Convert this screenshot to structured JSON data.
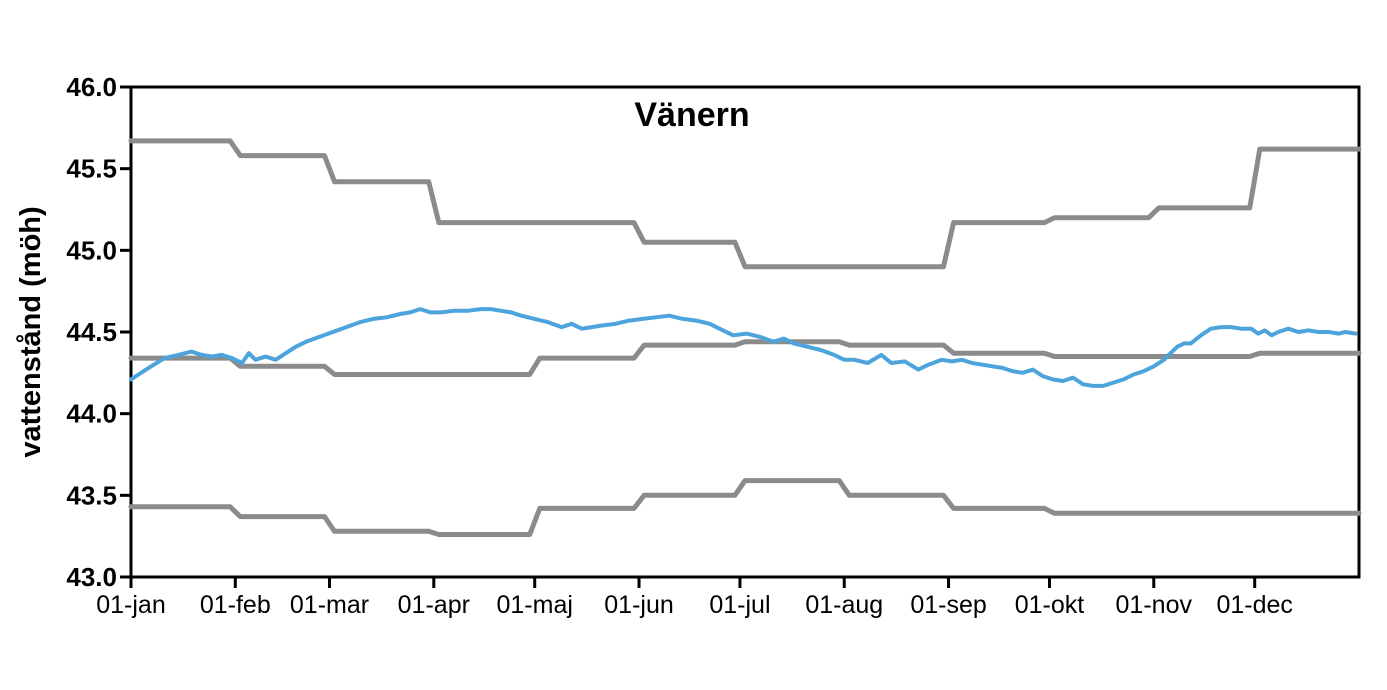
{
  "page": {
    "background": "#FFFFFF"
  },
  "chart_data": {
    "type": "line",
    "title": "Vänern",
    "ylabel": "vattenstånd (möh)",
    "xlabel": "",
    "ylim": [
      43.0,
      46.0
    ],
    "ytick_step": 0.5,
    "ytick_labels": [
      "46.0",
      "45.5",
      "45.0",
      "44.5",
      "44.0",
      "43.5",
      "43.0"
    ],
    "x_categories": [
      "01-jan",
      "01-feb",
      "01-mar",
      "01-apr",
      "01-maj",
      "01-jun",
      "01-jul",
      "01-aug",
      "01-sep",
      "01-okt",
      "01-nov",
      "01-dec"
    ],
    "month_start_days": [
      0,
      31,
      59,
      90,
      120,
      151,
      181,
      212,
      243,
      273,
      304,
      334
    ],
    "days_in_year": 365,
    "grid": false,
    "legend_position": "none",
    "axis_color": "#000000",
    "step_line_color": "#8B8B8B",
    "observed_line_color": "#4DA3DC",
    "series": [
      {
        "name": "upper-limit",
        "style": "step",
        "color": "#8B8B8B",
        "stroke_width": 5,
        "monthly_values": [
          45.67,
          45.58,
          45.42,
          45.17,
          45.17,
          45.05,
          44.9,
          44.9,
          45.17,
          45.2,
          45.26,
          45.62
        ]
      },
      {
        "name": "middle-reference",
        "style": "step",
        "color": "#8B8B8B",
        "stroke_width": 5,
        "monthly_values": [
          44.34,
          44.29,
          44.24,
          44.24,
          44.34,
          44.42,
          44.44,
          44.42,
          44.37,
          44.35,
          44.35,
          44.37
        ]
      },
      {
        "name": "lower-limit",
        "style": "step",
        "color": "#8B8B8B",
        "stroke_width": 5,
        "monthly_values": [
          43.43,
          43.37,
          43.28,
          43.26,
          43.42,
          43.5,
          43.59,
          43.5,
          43.42,
          43.39,
          43.39,
          43.39
        ]
      },
      {
        "name": "vattenstand-observed",
        "style": "line",
        "color": "#4DA3DC",
        "stroke_width": 4,
        "points": [
          [
            0,
            44.21
          ],
          [
            3,
            44.25
          ],
          [
            6,
            44.29
          ],
          [
            10,
            44.34
          ],
          [
            14,
            44.36
          ],
          [
            18,
            44.38
          ],
          [
            21,
            44.36
          ],
          [
            24,
            44.35
          ],
          [
            27,
            44.36
          ],
          [
            30,
            44.34
          ],
          [
            33,
            44.31
          ],
          [
            35,
            44.37
          ],
          [
            37,
            44.33
          ],
          [
            40,
            44.35
          ],
          [
            43,
            44.33
          ],
          [
            46,
            44.37
          ],
          [
            49,
            44.41
          ],
          [
            52,
            44.44
          ],
          [
            56,
            44.47
          ],
          [
            60,
            44.5
          ],
          [
            64,
            44.53
          ],
          [
            68,
            44.56
          ],
          [
            72,
            44.58
          ],
          [
            76,
            44.59
          ],
          [
            80,
            44.61
          ],
          [
            83,
            44.62
          ],
          [
            86,
            44.64
          ],
          [
            89,
            44.62
          ],
          [
            92,
            44.62
          ],
          [
            96,
            44.63
          ],
          [
            100,
            44.63
          ],
          [
            104,
            44.64
          ],
          [
            107,
            44.64
          ],
          [
            110,
            44.63
          ],
          [
            113,
            44.62
          ],
          [
            116,
            44.6
          ],
          [
            120,
            44.58
          ],
          [
            124,
            44.56
          ],
          [
            128,
            44.53
          ],
          [
            131,
            44.55
          ],
          [
            134,
            44.52
          ],
          [
            137,
            44.53
          ],
          [
            140,
            44.54
          ],
          [
            144,
            44.55
          ],
          [
            148,
            44.57
          ],
          [
            152,
            44.58
          ],
          [
            156,
            44.59
          ],
          [
            160,
            44.6
          ],
          [
            164,
            44.58
          ],
          [
            168,
            44.57
          ],
          [
            172,
            44.55
          ],
          [
            176,
            44.51
          ],
          [
            179,
            44.48
          ],
          [
            183,
            44.49
          ],
          [
            187,
            44.47
          ],
          [
            191,
            44.44
          ],
          [
            194,
            44.46
          ],
          [
            197,
            44.43
          ],
          [
            201,
            44.41
          ],
          [
            205,
            44.39
          ],
          [
            209,
            44.36
          ],
          [
            212,
            44.33
          ],
          [
            215,
            44.33
          ],
          [
            219,
            44.31
          ],
          [
            223,
            44.36
          ],
          [
            226,
            44.31
          ],
          [
            230,
            44.32
          ],
          [
            234,
            44.27
          ],
          [
            237,
            44.3
          ],
          [
            241,
            44.33
          ],
          [
            244,
            44.32
          ],
          [
            247,
            44.33
          ],
          [
            250,
            44.31
          ],
          [
            253,
            44.3
          ],
          [
            256,
            44.29
          ],
          [
            259,
            44.28
          ],
          [
            262,
            44.26
          ],
          [
            265,
            44.25
          ],
          [
            268,
            44.27
          ],
          [
            271,
            44.23
          ],
          [
            274,
            44.21
          ],
          [
            277,
            44.2
          ],
          [
            280,
            44.22
          ],
          [
            283,
            44.18
          ],
          [
            286,
            44.17
          ],
          [
            289,
            44.17
          ],
          [
            292,
            44.19
          ],
          [
            295,
            44.21
          ],
          [
            298,
            44.24
          ],
          [
            301,
            44.26
          ],
          [
            304,
            44.29
          ],
          [
            307,
            44.33
          ],
          [
            309,
            44.37
          ],
          [
            311,
            44.41
          ],
          [
            313,
            44.43
          ],
          [
            315,
            44.43
          ],
          [
            318,
            44.48
          ],
          [
            321,
            44.52
          ],
          [
            324,
            44.53
          ],
          [
            327,
            44.53
          ],
          [
            330,
            44.52
          ],
          [
            333,
            44.52
          ],
          [
            335,
            44.49
          ],
          [
            337,
            44.51
          ],
          [
            339,
            44.48
          ],
          [
            341,
            44.5
          ],
          [
            344,
            44.52
          ],
          [
            347,
            44.5
          ],
          [
            350,
            44.51
          ],
          [
            353,
            44.5
          ],
          [
            356,
            44.5
          ],
          [
            359,
            44.49
          ],
          [
            361,
            44.5
          ],
          [
            364,
            44.49
          ]
        ]
      }
    ]
  }
}
